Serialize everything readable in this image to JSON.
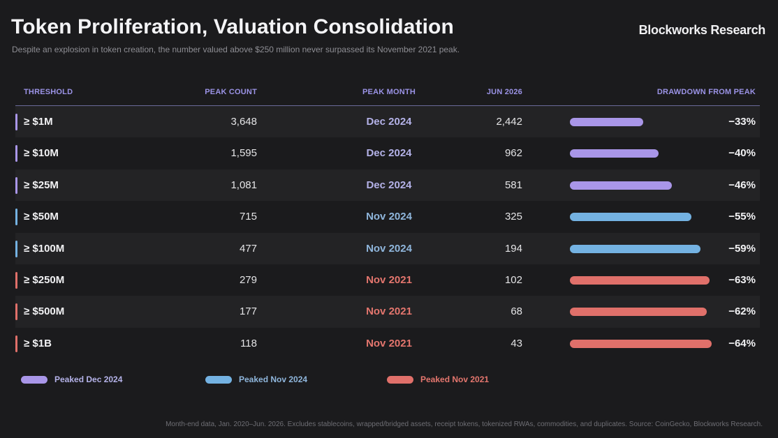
{
  "header": {
    "title": "Token Proliferation, Valuation Consolidation",
    "subtitle": "Despite an explosion in token creation, the number valued above $250 million never surpassed its November 2021 peak.",
    "brand": "Blockworks Research"
  },
  "colors": {
    "dec2024": "#a996e8",
    "nov2024": "#74b2e2",
    "nov2021": "#e0706a",
    "dec2024_text": "#b4b2e8",
    "nov2024_text": "#8fb6dc",
    "nov2021_text": "#e4766e"
  },
  "chart_data": {
    "type": "table",
    "columns": [
      "THRESHOLD",
      "PEAK COUNT",
      "PEAK MONTH",
      "JUN 2026",
      "DRAWDOWN FROM PEAK"
    ],
    "rows": [
      {
        "threshold": "≥ $1M",
        "peak_count": "3,648",
        "peak_month": "Dec 2024",
        "jun_2026": "2,442",
        "drawdown": "−33%",
        "drawdown_value": 33,
        "group": "dec2024"
      },
      {
        "threshold": "≥ $10M",
        "peak_count": "1,595",
        "peak_month": "Dec 2024",
        "jun_2026": "962",
        "drawdown": "−40%",
        "drawdown_value": 40,
        "group": "dec2024"
      },
      {
        "threshold": "≥ $25M",
        "peak_count": "1,081",
        "peak_month": "Dec 2024",
        "jun_2026": "581",
        "drawdown": "−46%",
        "drawdown_value": 46,
        "group": "dec2024"
      },
      {
        "threshold": "≥ $50M",
        "peak_count": "715",
        "peak_month": "Nov 2024",
        "jun_2026": "325",
        "drawdown": "−55%",
        "drawdown_value": 55,
        "group": "nov2024"
      },
      {
        "threshold": "≥ $100M",
        "peak_count": "477",
        "peak_month": "Nov 2024",
        "jun_2026": "194",
        "drawdown": "−59%",
        "drawdown_value": 59,
        "group": "nov2024"
      },
      {
        "threshold": "≥ $250M",
        "peak_count": "279",
        "peak_month": "Nov 2021",
        "jun_2026": "102",
        "drawdown": "−63%",
        "drawdown_value": 63,
        "group": "nov2021"
      },
      {
        "threshold": "≥ $500M",
        "peak_count": "177",
        "peak_month": "Nov 2021",
        "jun_2026": "68",
        "drawdown": "−62%",
        "drawdown_value": 62,
        "group": "nov2021"
      },
      {
        "threshold": "≥ $1B",
        "peak_count": "118",
        "peak_month": "Nov 2021",
        "jun_2026": "43",
        "drawdown": "−64%",
        "drawdown_value": 64,
        "group": "nov2021"
      }
    ],
    "bar_max": 65,
    "legend": [
      {
        "label": "Peaked Dec 2024",
        "group": "dec2024"
      },
      {
        "label": "Peaked Nov 2024",
        "group": "nov2024"
      },
      {
        "label": "Peaked Nov 2021",
        "group": "nov2021"
      }
    ]
  },
  "footnote": "Month-end data, Jan. 2020–Jun. 2026. Excludes stablecoins, wrapped/bridged assets, receipt tokens, tokenized RWAs, commodities, and duplicates. Source: CoinGecko, Blockworks Research."
}
